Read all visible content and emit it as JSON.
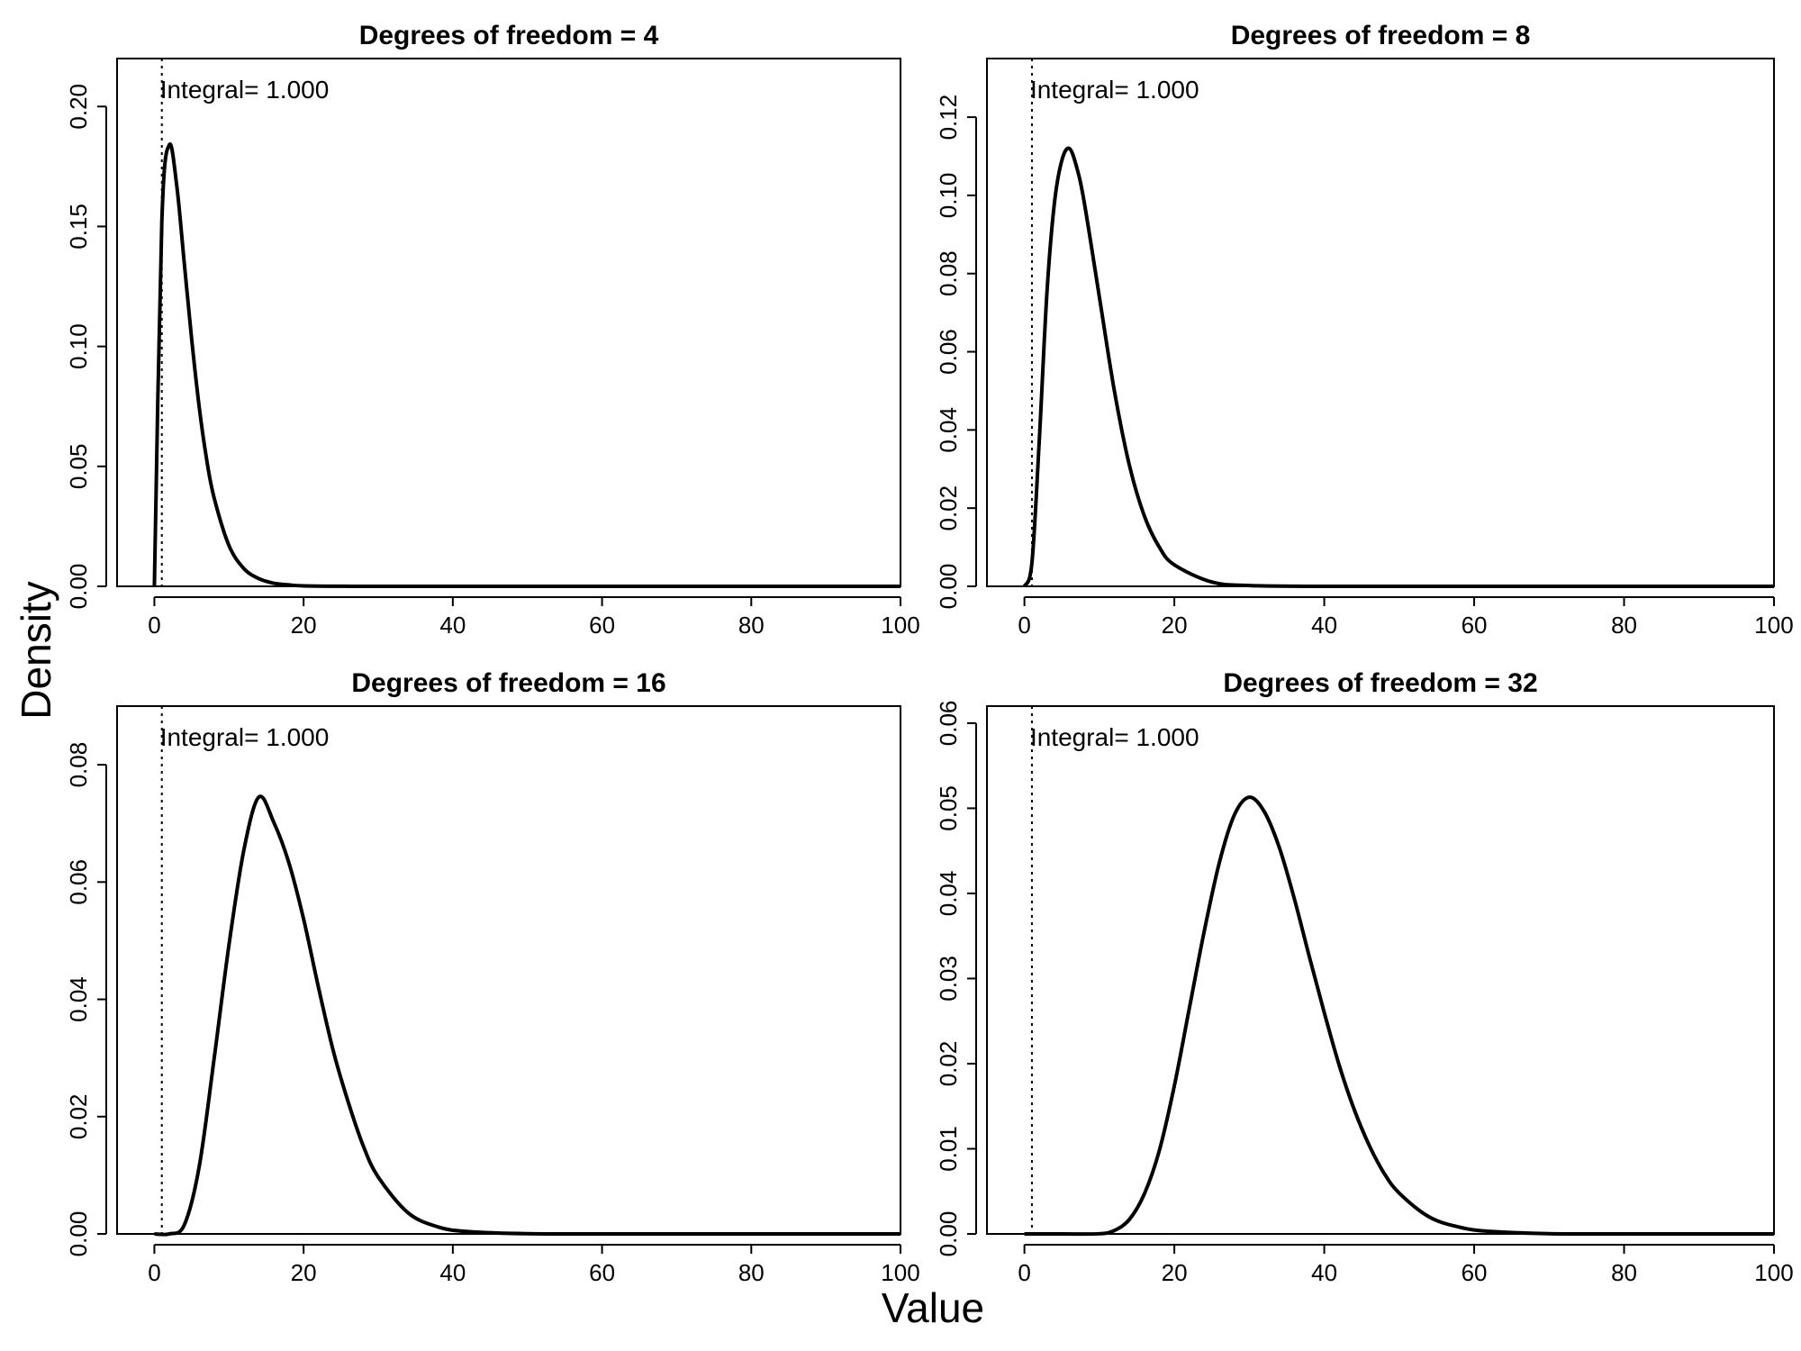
{
  "figure": {
    "xlabel": "Value",
    "ylabel": "Density"
  },
  "chart_data": [
    {
      "type": "line",
      "title": "Degrees of freedom =  4",
      "df": 4,
      "annotation": "Integral= 1.000",
      "reference_line_x": 1,
      "xlim": [
        -5,
        100
      ],
      "ylim": [
        0,
        0.22
      ],
      "xticks": [
        0,
        20,
        40,
        60,
        80,
        100
      ],
      "yticks": [
        0.0,
        0.05,
        0.1,
        0.15,
        0.2
      ],
      "ytick_labels": [
        "0.00",
        "0.05",
        "0.10",
        "0.15",
        "0.20"
      ],
      "x": [
        0,
        1,
        2,
        3,
        4,
        5,
        6,
        7,
        8,
        10,
        12,
        14,
        16,
        18,
        20,
        25,
        30,
        40,
        60,
        80,
        100
      ],
      "values": [
        0,
        0.152,
        0.184,
        0.167,
        0.135,
        0.103,
        0.075,
        0.053,
        0.037,
        0.017,
        0.0074,
        0.0032,
        0.0013,
        0.0006,
        0.0002,
        3e-05,
        0,
        0,
        0,
        0,
        0
      ]
    },
    {
      "type": "line",
      "title": "Degrees of freedom =  8",
      "df": 8,
      "annotation": "Integral= 1.000",
      "reference_line_x": 1,
      "xlim": [
        -5,
        100
      ],
      "ylim": [
        0,
        0.135
      ],
      "xticks": [
        0,
        20,
        40,
        60,
        80,
        100
      ],
      "yticks": [
        0.0,
        0.02,
        0.04,
        0.06,
        0.08,
        0.1,
        0.12
      ],
      "ytick_labels": [
        "0.00",
        "0.02",
        "0.04",
        "0.06",
        "0.08",
        "0.10",
        "0.12"
      ],
      "x": [
        0,
        1,
        2,
        3,
        4,
        5,
        6,
        7,
        8,
        10,
        12,
        14,
        16,
        18,
        20,
        25,
        30,
        40,
        60,
        80,
        100
      ],
      "values": [
        0,
        0.006,
        0.038,
        0.075,
        0.098,
        0.109,
        0.112,
        0.107,
        0.098,
        0.074,
        0.05,
        0.031,
        0.018,
        0.01,
        0.0055,
        0.0011,
        0.0002,
        0,
        0,
        0,
        0
      ]
    },
    {
      "type": "line",
      "title": "Degrees of freedom =  16",
      "df": 16,
      "annotation": "Integral= 1.000",
      "reference_line_x": 1,
      "xlim": [
        -5,
        100
      ],
      "ylim": [
        0,
        0.09
      ],
      "xticks": [
        0,
        20,
        40,
        60,
        80,
        100
      ],
      "yticks": [
        0.0,
        0.02,
        0.04,
        0.06,
        0.08
      ],
      "ytick_labels": [
        "0.00",
        "0.02",
        "0.04",
        "0.06",
        "0.08"
      ],
      "x": [
        0,
        2,
        4,
        6,
        8,
        10,
        12,
        14,
        16,
        18,
        20,
        22,
        24,
        26,
        28,
        30,
        34,
        38,
        42,
        50,
        60,
        80,
        100
      ],
      "values": [
        0,
        1e-05,
        0.0015,
        0.0114,
        0.0298,
        0.0493,
        0.0655,
        0.0745,
        0.0702,
        0.0634,
        0.0537,
        0.042,
        0.0311,
        0.0224,
        0.015,
        0.0097,
        0.0036,
        0.0012,
        0.0004,
        3e-05,
        0,
        0,
        0
      ]
    },
    {
      "type": "line",
      "title": "Degrees of freedom =  32",
      "df": 32,
      "annotation": "Integral= 1.000",
      "reference_line_x": 1,
      "xlim": [
        -5,
        100
      ],
      "ylim": [
        0,
        0.062
      ],
      "xticks": [
        0,
        20,
        40,
        60,
        80,
        100
      ],
      "yticks": [
        0.0,
        0.01,
        0.02,
        0.03,
        0.04,
        0.05,
        0.06
      ],
      "ytick_labels": [
        "0.00",
        "0.01",
        "0.02",
        "0.03",
        "0.04",
        "0.05",
        "0.06"
      ],
      "x": [
        0,
        5,
        10,
        12,
        14,
        16,
        18,
        20,
        22,
        24,
        26,
        28,
        30,
        32,
        34,
        36,
        38,
        40,
        42,
        44,
        46,
        48,
        50,
        54,
        58,
        62,
        70,
        80,
        100
      ],
      "values": [
        0,
        0,
        2e-05,
        0.0004,
        0.0017,
        0.0047,
        0.0098,
        0.0174,
        0.0265,
        0.0356,
        0.0436,
        0.0492,
        0.0513,
        0.0496,
        0.0454,
        0.0394,
        0.0326,
        0.026,
        0.0198,
        0.0146,
        0.0104,
        0.0071,
        0.0048,
        0.002,
        0.0008,
        0.0003,
        3e-05,
        0,
        0
      ]
    }
  ]
}
